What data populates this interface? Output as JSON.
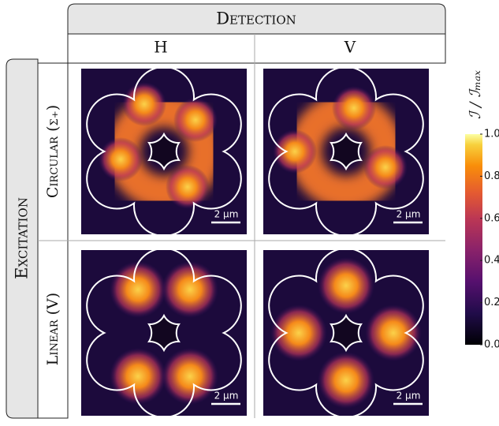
{
  "header": {
    "title": "Detection",
    "columns": [
      "H",
      "V"
    ]
  },
  "rows": {
    "title": "Excitation",
    "labels": [
      "Circular (σ₊)",
      "Linear (V)"
    ]
  },
  "panels": [
    {
      "scale_bar": "2 µm"
    },
    {
      "scale_bar": "2 µm"
    },
    {
      "scale_bar": "2 µm"
    },
    {
      "scale_bar": "2 µm"
    }
  ],
  "colorbar": {
    "label": "ℐ / ℐₘₐₓ",
    "lim": [
      0,
      1
    ],
    "ticks": [
      {
        "value": 0,
        "label": "0.0"
      },
      {
        "value": 0.2,
        "label": "0.2"
      },
      {
        "value": 0.4,
        "label": "0.4"
      },
      {
        "value": 0.6,
        "label": "0.6"
      },
      {
        "value": 0.8,
        "label": "0.8"
      },
      {
        "value": 1,
        "label": "1.0"
      }
    ]
  }
}
